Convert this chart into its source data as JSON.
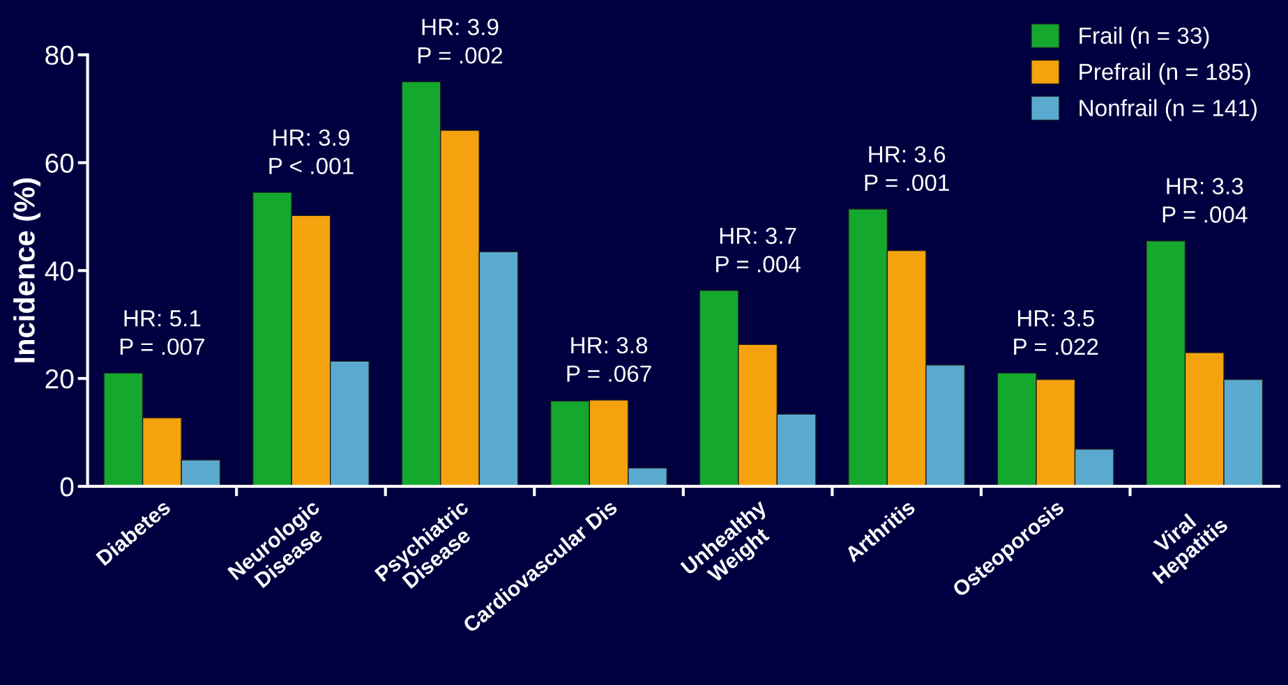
{
  "chart_data": {
    "type": "bar",
    "ylabel": "Incidence (%)",
    "categories": [
      "Diabetes",
      "Neurologic\nDisease",
      "Psychiatric\nDisease",
      "Cardiovascular Dis",
      "Unhealthy\nWeight",
      "Arthritis",
      "Osteoporosis",
      "Viral\nHepatitis"
    ],
    "series": [
      {
        "name": "Frail (n = 33)",
        "color": "#14a82e",
        "values": [
          21.0,
          54.5,
          75.0,
          15.8,
          36.3,
          51.4,
          21.0,
          45.5
        ]
      },
      {
        "name": "Prefrail (n = 185)",
        "color": "#f5a20f",
        "values": [
          12.7,
          50.2,
          66.0,
          16.0,
          26.3,
          43.7,
          19.8,
          24.8
        ]
      },
      {
        "name": "Nonfrail (n = 141)",
        "color": "#5aaacf",
        "values": [
          4.9,
          23.2,
          43.5,
          3.4,
          13.4,
          22.5,
          6.9,
          19.8
        ]
      }
    ],
    "annotations": [
      "HR: 5.1\nP = .007",
      "HR: 3.9\nP < .001",
      "HR: 3.9\nP = .002",
      "HR: 3.8\nP = .067",
      "HR: 3.7\nP = .004",
      "HR: 3.6\nP = .001",
      "HR: 3.5\nP = .022",
      "HR: 3.3\nP = .004"
    ],
    "ylim": [
      0,
      80
    ],
    "yticks": [
      0,
      20,
      40,
      60,
      80
    ],
    "grid": false,
    "legend": "top right"
  }
}
